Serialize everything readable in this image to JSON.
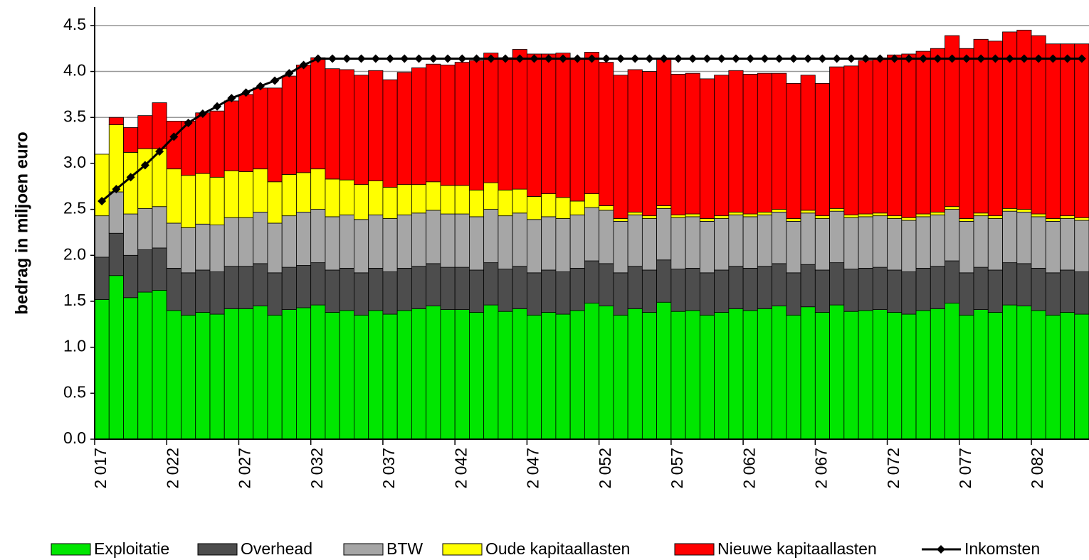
{
  "chart_data": {
    "type": "stacked-bar",
    "y_label": "bedrag in miljoen euro",
    "categories": [
      "2 017",
      null,
      null,
      null,
      null,
      "2 022",
      null,
      null,
      null,
      null,
      "2 027",
      null,
      null,
      null,
      null,
      "2 032",
      null,
      null,
      null,
      null,
      "2 037",
      null,
      null,
      null,
      null,
      "2 042",
      null,
      null,
      null,
      null,
      "2 047",
      null,
      null,
      null,
      null,
      "2 052",
      null,
      null,
      null,
      null,
      "2 057",
      null,
      null,
      null,
      null,
      "2 062",
      null,
      null,
      null,
      null,
      "2 067",
      null,
      null,
      null,
      null,
      "2 072",
      null,
      null,
      null,
      null,
      "2 077",
      null,
      null,
      null,
      null,
      "2 082",
      null,
      null,
      null
    ],
    "series": [
      {
        "name": "Exploitatie",
        "color": "#00e600",
        "values": [
          1.52,
          1.78,
          1.54,
          1.6,
          1.62,
          1.4,
          1.35,
          1.38,
          1.36,
          1.42,
          1.42,
          1.45,
          1.35,
          1.41,
          1.43,
          1.46,
          1.38,
          1.4,
          1.35,
          1.4,
          1.36,
          1.4,
          1.42,
          1.45,
          1.41,
          1.41,
          1.38,
          1.46,
          1.39,
          1.42,
          1.35,
          1.38,
          1.36,
          1.4,
          1.48,
          1.45,
          1.35,
          1.42,
          1.38,
          1.49,
          1.39,
          1.4,
          1.35,
          1.38,
          1.42,
          1.4,
          1.42,
          1.45,
          1.35,
          1.44,
          1.38,
          1.46,
          1.39,
          1.4,
          1.41,
          1.38,
          1.36,
          1.4,
          1.42,
          1.48,
          1.35,
          1.41,
          1.38,
          1.46,
          1.45,
          1.4,
          1.35,
          1.38,
          1.36
        ]
      },
      {
        "name": "Overhead",
        "color": "#4d4d4d",
        "values": [
          0.46,
          0.46,
          0.46,
          0.46,
          0.46,
          0.46,
          0.46,
          0.46,
          0.46,
          0.46,
          0.46,
          0.46,
          0.46,
          0.46,
          0.46,
          0.46,
          0.46,
          0.46,
          0.46,
          0.46,
          0.46,
          0.46,
          0.46,
          0.46,
          0.46,
          0.46,
          0.46,
          0.46,
          0.46,
          0.46,
          0.46,
          0.46,
          0.46,
          0.46,
          0.46,
          0.46,
          0.46,
          0.46,
          0.46,
          0.46,
          0.46,
          0.46,
          0.46,
          0.46,
          0.46,
          0.46,
          0.46,
          0.46,
          0.46,
          0.46,
          0.46,
          0.46,
          0.46,
          0.46,
          0.46,
          0.46,
          0.46,
          0.46,
          0.46,
          0.46,
          0.46,
          0.46,
          0.46,
          0.46,
          0.46,
          0.46,
          0.46,
          0.46,
          0.46
        ]
      },
      {
        "name": "BTW",
        "color": "#a6a6a6",
        "values": [
          0.45,
          0.45,
          0.45,
          0.45,
          0.45,
          0.49,
          0.49,
          0.5,
          0.51,
          0.53,
          0.53,
          0.56,
          0.54,
          0.56,
          0.58,
          0.58,
          0.58,
          0.58,
          0.58,
          0.58,
          0.58,
          0.58,
          0.58,
          0.58,
          0.58,
          0.58,
          0.58,
          0.58,
          0.58,
          0.58,
          0.58,
          0.58,
          0.58,
          0.58,
          0.58,
          0.58,
          0.56,
          0.56,
          0.56,
          0.56,
          0.56,
          0.56,
          0.56,
          0.56,
          0.56,
          0.56,
          0.56,
          0.56,
          0.56,
          0.56,
          0.56,
          0.56,
          0.56,
          0.56,
          0.56,
          0.56,
          0.56,
          0.56,
          0.56,
          0.56,
          0.56,
          0.56,
          0.56,
          0.56,
          0.56,
          0.56,
          0.56,
          0.56,
          0.56
        ]
      },
      {
        "name": "Oude kapitaallasten",
        "color": "#ffff00",
        "values": [
          0.67,
          0.73,
          0.67,
          0.65,
          0.63,
          0.59,
          0.57,
          0.55,
          0.52,
          0.51,
          0.5,
          0.47,
          0.45,
          0.45,
          0.43,
          0.44,
          0.41,
          0.38,
          0.38,
          0.37,
          0.34,
          0.33,
          0.31,
          0.31,
          0.31,
          0.31,
          0.29,
          0.29,
          0.28,
          0.26,
          0.25,
          0.25,
          0.23,
          0.15,
          0.15,
          0.05,
          0.03,
          0.03,
          0.03,
          0.03,
          0.03,
          0.03,
          0.03,
          0.03,
          0.03,
          0.03,
          0.03,
          0.03,
          0.03,
          0.03,
          0.03,
          0.03,
          0.03,
          0.03,
          0.03,
          0.03,
          0.03,
          0.03,
          0.03,
          0.03,
          0.03,
          0.03,
          0.03,
          0.03,
          0.03,
          0.03,
          0.03,
          0.03,
          0.03
        ]
      },
      {
        "name": "Nieuwe kapitaallasten",
        "color": "#ff0000",
        "values": [
          0,
          0.08,
          0.27,
          0.36,
          0.5,
          0.52,
          0.59,
          0.66,
          0.72,
          0.76,
          0.84,
          0.88,
          1.02,
          1.07,
          1.17,
          1.21,
          1.2,
          1.2,
          1.19,
          1.2,
          1.17,
          1.22,
          1.27,
          1.28,
          1.31,
          1.34,
          1.41,
          1.41,
          1.44,
          1.52,
          1.55,
          1.52,
          1.57,
          1.55,
          1.54,
          1.56,
          1.56,
          1.55,
          1.57,
          1.6,
          1.53,
          1.53,
          1.52,
          1.53,
          1.54,
          1.52,
          1.51,
          1.48,
          1.47,
          1.47,
          1.44,
          1.54,
          1.62,
          1.67,
          1.67,
          1.75,
          1.78,
          1.77,
          1.78,
          1.86,
          1.85,
          1.89,
          1.9,
          1.92,
          1.95,
          1.94,
          1.9,
          1.87,
          1.89
        ]
      },
      {
        "name": "Inkomsten",
        "color": "#000000",
        "type": "line",
        "values": [
          2.59,
          2.72,
          2.85,
          2.98,
          3.13,
          3.29,
          3.44,
          3.54,
          3.62,
          3.71,
          3.77,
          3.84,
          3.9,
          3.98,
          4.07,
          4.14,
          4.14,
          4.14,
          4.14,
          4.14,
          4.14,
          4.14,
          4.14,
          4.14,
          4.14,
          4.14,
          4.14,
          4.14,
          4.14,
          4.14,
          4.14,
          4.14,
          4.14,
          4.14,
          4.14,
          4.14,
          4.14,
          4.14,
          4.14,
          4.14,
          4.14,
          4.14,
          4.14,
          4.14,
          4.14,
          4.14,
          4.14,
          4.14,
          4.14,
          4.14,
          4.14,
          4.14,
          4.14,
          4.14,
          4.14,
          4.14,
          4.14,
          4.14,
          4.14,
          4.14,
          4.14,
          4.14,
          4.14,
          4.14,
          4.14,
          4.14,
          4.14,
          4.14,
          4.14
        ]
      }
    ],
    "ylim": [
      0,
      4.7
    ],
    "yticks": [
      {
        "value": 0,
        "label": "0.0"
      },
      0.5,
      {
        "value": 1,
        "label": "1.0"
      },
      1.5,
      {
        "value": 2,
        "label": "2.0"
      },
      2.5,
      {
        "value": 3,
        "label": "3.0"
      },
      3.5,
      {
        "value": 4,
        "label": "4.0"
      },
      4.5
    ],
    "grid": true,
    "legend": "bottom"
  }
}
